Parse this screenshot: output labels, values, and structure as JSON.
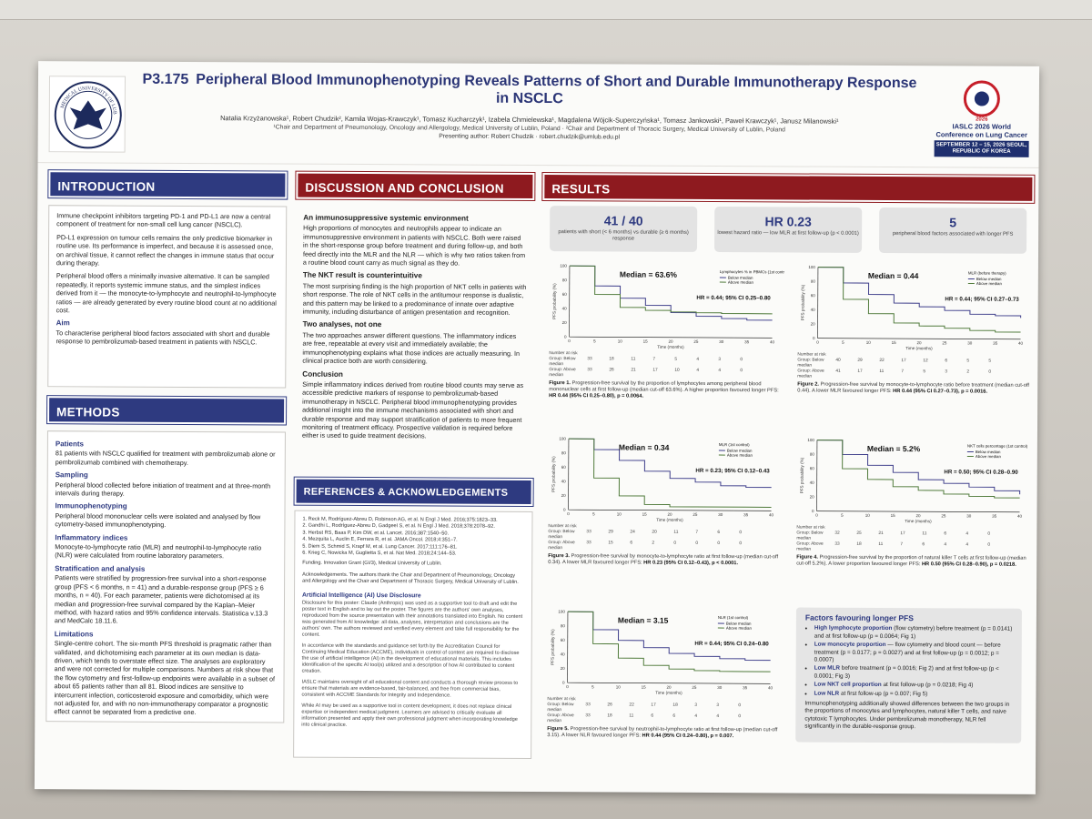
{
  "header": {
    "number": "P3.175",
    "title": "Peripheral Blood Immunophenotyping Reveals Patterns of Short and Durable Immunotherapy Response in NSCLC",
    "authors": "Natalia Krzyżanowska¹, Robert Chudzik², Kamila Wojas-Krawczyk¹, Tomasz Kucharczyk¹, Izabela Chmielewska¹, Magdalena Wójcik-Superczyńska¹, Tomasz Jankowski¹, Paweł Krawczyk¹, Janusz Milanowski¹",
    "affiliation": "¹Chair and Department of Pneumonology, Oncology and Allergology, Medical University of Lublin, Poland  ·  ²Chair and Department of Thoracic Surgery, Medical University of Lublin, Poland",
    "presenting": "Presenting author: Robert Chudzik  ·  robert.chudzik@umlub.edu.pl",
    "left_logo_text": "MEDICAL UNIVERSITY OF LUBLIN",
    "conf_year": "2026",
    "conf_name": "IASLC 2026 World Conference on Lung Cancer",
    "conf_date": "SEPTEMBER 12 – 15, 2026 SEOUL, REPUBLIC OF KOREA"
  },
  "intro": {
    "heading": "INTRODUCTION",
    "p1": "Immune checkpoint inhibitors targeting PD-1 and PD-L1 are now a central component of treatment for non-small cell lung cancer (NSCLC).",
    "p2": "PD-L1 expression on tumour cells remains the only predictive biomarker in routine use. Its performance is imperfect, and because it is assessed once, on archival tissue, it cannot reflect the changes in immune status that occur during therapy.",
    "p3": "Peripheral blood offers a minimally invasive alternative. It can be sampled repeatedly, it reports systemic immune status, and the simplest indices derived from it — the monocyte-to-lymphocyte and neutrophil-to-lymphocyte ratios — are already generated by every routine blood count at no additional cost.",
    "aim_title": "Aim",
    "aim": "To characterise peripheral blood factors associated with short and durable response to pembrolizumab-based treatment in patients with NSCLC."
  },
  "methods": {
    "heading": "METHODS",
    "patients_title": "Patients",
    "patients": "81 patients with NSCLC qualified for treatment with pembrolizumab alone or pembrolizumab combined with chemotherapy.",
    "sampling_title": "Sampling",
    "sampling": "Peripheral blood collected before initiation of treatment and at three-month intervals during therapy.",
    "immuno_title": "Immunophenotyping",
    "immuno": "Peripheral blood mononuclear cells were isolated and analysed by flow cytometry-based immunophenotyping.",
    "indices_title": "Inflammatory indices",
    "indices": "Monocyte-to-lymphocyte ratio (MLR) and neutrophil-to-lymphocyte ratio (NLR) were calculated from routine laboratory parameters.",
    "strat_title": "Stratification and analysis",
    "strat": "Patients were stratified by progression-free survival into a short-response group (PFS < 6 months, n = 41) and a durable-response group (PFS ≥ 6 months, n = 40). For each parameter, patients were dichotomised at its median and progression-free survival compared by the Kaplan–Meier method, with hazard ratios and 95% confidence intervals. Statistica v.13.3 and MedCalc 18.11.6.",
    "limits_title": "Limitations",
    "limits": "Single-centre cohort. The six-month PFS threshold is pragmatic rather than validated, and dichotomising each parameter at its own median is data-driven, which tends to overstate effect size. The analyses are exploratory and were not corrected for multiple comparisons. Numbers at risk show that the flow cytometry and first-follow-up endpoints were available in a subset of about 65 patients rather than all 81. Blood indices are sensitive to intercurrent infection, corticosteroid exposure and comorbidity, which were not adjusted for, and with no non-immunotherapy comparator a prognostic effect cannot be separated from a predictive one."
  },
  "discussion": {
    "heading": "DISCUSSION AND CONCLUSION",
    "t1": "An immunosuppressive systemic environment",
    "p1": "High proportions of monocytes and neutrophils appear to indicate an immunosuppressive environment in patients with NSCLC. Both were raised in the short-response group before treatment and during follow-up, and both feed directly into the MLR and the NLR — which is why two ratios taken from a routine blood count carry as much signal as they do.",
    "t2": "The NKT result is counterintuitive",
    "p2": "The most surprising finding is the high proportion of NKT cells in patients with short response. The role of NKT cells in the antitumour response is dualistic, and this pattern may be linked to a predominance of innate over adaptive immunity, including disturbance of antigen presentation and recognition.",
    "t3": "Two analyses, not one",
    "p3": "The two approaches answer different questions. The inflammatory indices are free, repeatable at every visit and immediately available; the immunophenotyping explains what those indices are actually measuring. In clinical practice both are worth considering.",
    "t4": "Conclusion",
    "p4": "Simple inflammatory indices derived from routine blood counts may serve as accessible predictive markers of response to pembrolizumab-based immunotherapy in NSCLC. Peripheral blood immunophenotyping provides additional insight into the immune mechanisms associated with short and durable response and may support stratification of patients to more frequent monitoring of treatment efficacy. Prospective validation is required before either is used to guide treatment decisions."
  },
  "refs": {
    "heading": "REFERENCES & ACKNOWLEDGEMENTS",
    "items": [
      "1. Reck M, Rodríguez-Abreu D, Robinson AG, et al. N Engl J Med. 2016;375:1823–33.",
      "2. Gandhi L, Rodríguez-Abreu D, Gadgeel S, et al. N Engl J Med. 2018;378:2078–92.",
      "3. Herbst RS, Baas P, Kim DW, et al. Lancet. 2016;387:1540–50.",
      "4. Mezquita L, Auclin E, Ferrara R, et al. JAMA Oncol. 2018;4:351–7.",
      "5. Diem S, Schmid S, Krapf M, et al. Lung Cancer. 2017;111:176–81.",
      "6. Krieg C, Nowicka M, Guglietta S, et al. Nat Med. 2018;24:144–53."
    ],
    "funding": "Funding. Innovation Grant (GI/3), Medical University of Lublin.",
    "ack": "Acknowledgements. The authors thank the Chair and Department of Pneumonology, Oncology and Allergology and the Chair and Department of Thoracic Surgery, Medical University of Lublin.",
    "ai_title": "Artificial Intelligence (AI) Use Disclosure",
    "ai1": "Disclosure for this poster: Claude (Anthropic) was used as a supportive tool to draft and edit the poster text in English and to lay out the poster. The figures are the authors' own analyses, reproduced from the source presentation with their annotations translated into English. No content was generated from AI knowledge: all data, analyses, interpretation and conclusions are the authors' own. The authors reviewed and verified every element and take full responsibility for the content.",
    "ai2": "In accordance with the standards and guidance set forth by the Accreditation Council for Continuing Medical Education (ACCME), individuals in control of content are required to disclose the use of artificial intelligence (AI) in the development of educational materials. This includes identification of the specific AI tool(s) utilized and a description of how AI contributed to content creation.",
    "ai3": "IASLC maintains oversight of all educational content and conducts a thorough review process to ensure that materials are evidence-based, fair-balanced, and free from commercial bias, consistent with ACCME Standards for Integrity and Independence.",
    "ai4": "While AI may be used as a supportive tool in content development, it does not replace clinical expertise or independent medical judgment. Learners are advised to critically evaluate all information presented and apply their own professional judgment when incorporating knowledge into clinical practice."
  },
  "results": {
    "heading": "RESULTS",
    "kpis": [
      {
        "big": "41 / 40",
        "sub": "patients with short (< 6 months) vs durable (≥ 6 months) response"
      },
      {
        "big": "HR 0.23",
        "sub": "lowest hazard ratio — low MLR at first follow-up (p < 0.0001)"
      },
      {
        "big": "5",
        "sub": "peripheral blood factors associated with longer PFS"
      }
    ],
    "axis_x": "Time (months)",
    "axis_y": "PFS probability (%)",
    "risk_title": "Number at risk",
    "factors_title": "Factors favouring longer PFS",
    "factors": [
      {
        "b": "High lymphocyte proportion",
        "t": " (flow cytometry) before treatment (p = 0.0141) and at first follow-up (p = 0.0064; Fig 1)"
      },
      {
        "b": "Low monocyte proportion",
        "t": " — flow cytometry and blood count — before treatment (p = 0.0177; p = 0.0027) and at first follow-up (p = 0.0012; p = 0.0007)"
      },
      {
        "b": "Low MLR",
        "t": " before treatment (p = 0.0016; Fig 2) and at first follow-up (p < 0.0001; Fig 3)"
      },
      {
        "b": "Low NKT cell proportion",
        "t": " at first follow-up (p = 0.0218; Fig 4)"
      },
      {
        "b": "Low NLR",
        "t": " at first follow-up (p = 0.007; Fig 5)"
      }
    ],
    "factors_note": "Immunophenotyping additionally showed differences between the two groups in the proportions of monocytes and lymphocytes, natural killer T cells, and naive cytotoxic T lymphocytes. Under pembrolizumab monotherapy, NLR fell significantly in the durable-response group."
  },
  "chart_data": [
    {
      "type": "line",
      "id": "fig1",
      "median_label": "Median = 63.6%",
      "legend_title": "Lymphocytes % in PBMCs (1st control)",
      "hr": "HR = 0.44; 95% CI 0.25–0.80",
      "x": [
        0,
        5,
        10,
        15,
        20,
        25,
        30,
        35,
        40
      ],
      "series": [
        {
          "name": "Below median",
          "color": "#3d3d8a",
          "values": [
            100,
            72,
            55,
            45,
            35,
            30,
            27,
            25,
            25
          ]
        },
        {
          "name": "Above median",
          "color": "#4f7a3a",
          "values": [
            100,
            60,
            42,
            38,
            36,
            35,
            34,
            34,
            34
          ]
        }
      ],
      "xlim": [
        0,
        40
      ],
      "ylim": [
        0,
        100
      ],
      "risk": [
        [
          "Group: Below median",
          "33",
          "18",
          "11",
          "7",
          "5",
          "4",
          "3",
          "0"
        ],
        [
          "Group: Above median",
          "33",
          "26",
          "21",
          "17",
          "10",
          "4",
          "4",
          "0"
        ]
      ],
      "caption_a": "Figure 1.",
      "caption": " Progression-free survival by the proportion of lymphocytes among peripheral blood mononuclear cells at first follow-up (median cut-off 63.6%). A higher proportion favoured longer PFS: ",
      "caption_b": "HR 0.44 (95% CI 0.25–0.80), p = 0.0064."
    },
    {
      "type": "line",
      "id": "fig2",
      "median_label": "Median = 0.44",
      "legend_title": "MLR (before therapy)",
      "hr": "HR = 0.44; 95% CI 0.27–0.73",
      "x": [
        0,
        5,
        10,
        15,
        20,
        25,
        30,
        35,
        40
      ],
      "series": [
        {
          "name": "Below median",
          "color": "#3d3d8a",
          "values": [
            100,
            78,
            62,
            50,
            45,
            40,
            35,
            33,
            30
          ]
        },
        {
          "name": "Above median",
          "color": "#4f7a3a",
          "values": [
            100,
            55,
            35,
            22,
            18,
            15,
            12,
            10,
            10
          ]
        }
      ],
      "xlim": [
        0,
        40
      ],
      "ylim": [
        0,
        100
      ],
      "risk": [
        [
          "Group: Below median",
          "40",
          "29",
          "22",
          "17",
          "12",
          "6",
          "5",
          "5"
        ],
        [
          "Group: Above median",
          "41",
          "17",
          "11",
          "7",
          "5",
          "3",
          "2",
          "0"
        ]
      ],
      "caption_a": "Figure 2.",
      "caption": " Progression-free survival by monocyte-to-lymphocyte ratio before treatment (median cut-off 0.44). A lower MLR favoured longer PFS: ",
      "caption_b": "HR 0.44 (95% CI 0.27–0.73), p = 0.0016."
    },
    {
      "type": "line",
      "id": "fig3",
      "median_label": "Median = 0.34",
      "legend_title": "MLR (1st control)",
      "hr": "HR = 0.23; 95% CI 0.12–0.43",
      "x": [
        0,
        5,
        10,
        15,
        20,
        25,
        30,
        35,
        40
      ],
      "series": [
        {
          "name": "Below median",
          "color": "#3d3d8a",
          "values": [
            100,
            85,
            70,
            55,
            45,
            40,
            35,
            33,
            33
          ]
        },
        {
          "name": "Above median",
          "color": "#4f7a3a",
          "values": [
            100,
            45,
            20,
            8,
            5,
            5,
            5,
            5,
            5
          ]
        }
      ],
      "xlim": [
        0,
        40
      ],
      "ylim": [
        0,
        100
      ],
      "risk": [
        [
          "Group: Below median",
          "33",
          "29",
          "24",
          "20",
          "11",
          "7",
          "6",
          "0"
        ],
        [
          "Group: Above median",
          "33",
          "15",
          "6",
          "2",
          "0",
          "0",
          "0",
          "0"
        ]
      ],
      "caption_a": "Figure 3.",
      "caption": " Progression-free survival by monocyte-to-lymphocyte ratio at first follow-up (median cut-off 0.34). A lower MLR favoured longer PFS: ",
      "caption_b": "HR 0.23 (95% CI 0.12–0.43), p < 0.0001."
    },
    {
      "type": "line",
      "id": "fig4",
      "median_label": "Median = 5.2%",
      "legend_title": "NKT cells percentage (1st control)",
      "hr": "HR = 0.50; 95% CI 0.28–0.90",
      "x": [
        0,
        5,
        10,
        15,
        20,
        25,
        30,
        35,
        40
      ],
      "series": [
        {
          "name": "Below median",
          "color": "#3d3d8a",
          "values": [
            100,
            80,
            65,
            55,
            45,
            40,
            35,
            30,
            25
          ]
        },
        {
          "name": "Above median",
          "color": "#4f7a3a",
          "values": [
            100,
            60,
            45,
            35,
            30,
            25,
            22,
            20,
            20
          ]
        }
      ],
      "xlim": [
        0,
        40
      ],
      "ylim": [
        0,
        100
      ],
      "risk": [
        [
          "Group: Below median",
          "32",
          "25",
          "21",
          "17",
          "11",
          "6",
          "4",
          "0"
        ],
        [
          "Group: Above median",
          "33",
          "18",
          "11",
          "7",
          "6",
          "4",
          "4",
          "0"
        ]
      ],
      "caption_a": "Figure 4.",
      "caption": " Progression-free survival by the proportion of natural killer T cells at first follow-up (median cut-off 5.2%). A lower proportion favoured longer PFS: ",
      "caption_b": "HR 0.50 (95% CI 0.28–0.90), p = 0.0218."
    },
    {
      "type": "line",
      "id": "fig5",
      "median_label": "Median = 3.15",
      "legend_title": "NLR (1st control)",
      "hr": "HR = 0.44; 95% CI 0.24–0.80",
      "x": [
        0,
        5,
        10,
        15,
        20,
        25,
        30,
        35,
        40
      ],
      "series": [
        {
          "name": "Below median",
          "color": "#3d3d8a",
          "values": [
            100,
            75,
            60,
            50,
            42,
            38,
            35,
            33,
            33
          ]
        },
        {
          "name": "Above median",
          "color": "#4f7a3a",
          "values": [
            100,
            55,
            35,
            25,
            20,
            18,
            17,
            17,
            17
          ]
        }
      ],
      "xlim": [
        0,
        40
      ],
      "ylim": [
        0,
        100
      ],
      "risk": [
        [
          "Group: Below median",
          "33",
          "26",
          "22",
          "17",
          "18",
          "3",
          "3",
          "0"
        ],
        [
          "Group: Above median",
          "33",
          "18",
          "11",
          "6",
          "6",
          "4",
          "4",
          "0"
        ]
      ],
      "caption_a": "Figure 5.",
      "caption": " Progression-free survival by neutrophil-to-lymphocyte ratio at first follow-up (median cut-off 3.15). A lower NLR favoured longer PFS: ",
      "caption_b": "HR 0.44 (95% CI 0.24–0.80), p = 0.007."
    }
  ]
}
